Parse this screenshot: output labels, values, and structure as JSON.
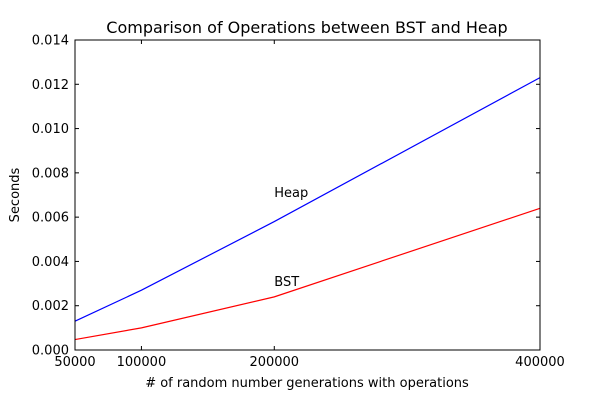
{
  "chart_data": {
    "type": "line",
    "title": "Comparison of Operations between BST and Heap",
    "xlabel": "# of random number generations with operations",
    "ylabel": "Seconds",
    "xlim": [
      50000,
      400000
    ],
    "ylim": [
      0,
      0.014
    ],
    "x": [
      50000,
      100000,
      200000,
      400000
    ],
    "xticks": [
      "50000",
      "100000",
      "200000",
      "400000"
    ],
    "yticks": [
      "0.000",
      "0.002",
      "0.004",
      "0.006",
      "0.008",
      "0.010",
      "0.012",
      "0.014"
    ],
    "grid": false,
    "legend": "none",
    "series": [
      {
        "name": "Heap",
        "color": "#0000ff",
        "values": [
          0.0013,
          0.0027,
          0.0058,
          0.0123
        ]
      },
      {
        "name": "BST",
        "color": "#ff0000",
        "values": [
          0.00047,
          0.001,
          0.0024,
          0.0064
        ]
      }
    ],
    "annotations": [
      {
        "text": "Heap",
        "x": 200000,
        "y": 0.0069
      },
      {
        "text": "BST",
        "x": 200000,
        "y": 0.0029
      }
    ]
  }
}
